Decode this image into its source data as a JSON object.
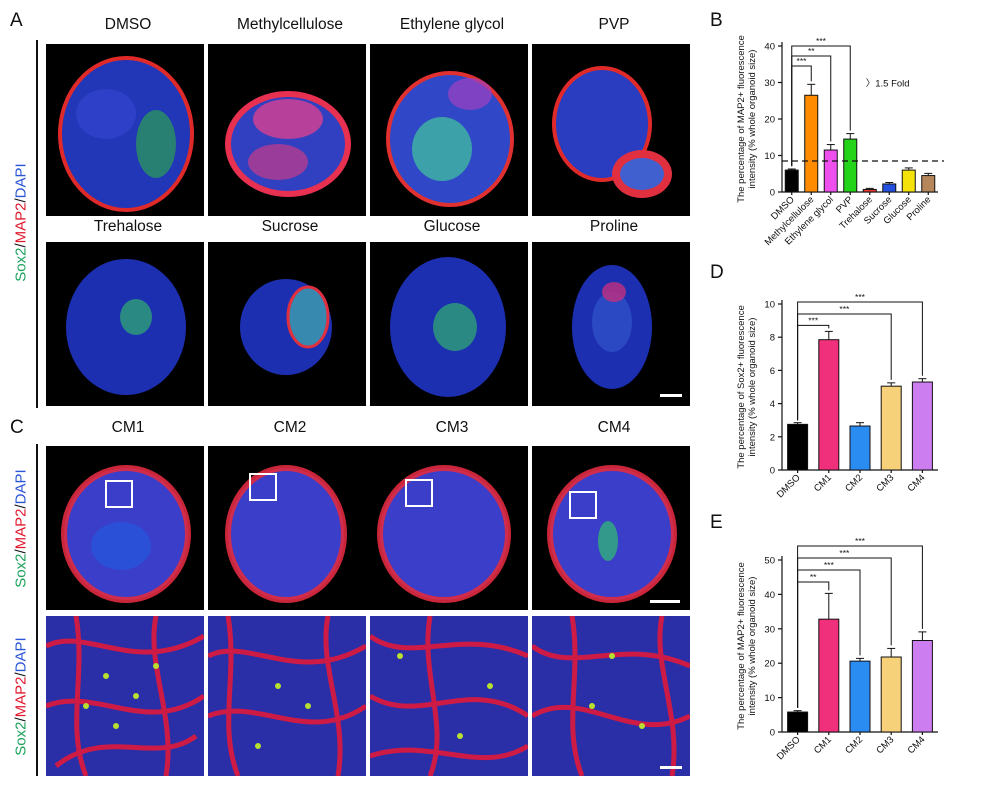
{
  "panels": {
    "A": "A",
    "B": "B",
    "C": "C",
    "D": "D",
    "E": "E"
  },
  "panel_a": {
    "row1": [
      "DMSO",
      "Methylcellulose",
      "Ethylene glycol",
      "PVP"
    ],
    "row2": [
      "Trehalose",
      "Sucrose",
      "Glucose",
      "Proline"
    ],
    "stain": {
      "sox2": "Sox2",
      "slash1": "/",
      "map2": "MAP2",
      "slash2": "/",
      "dapi": "DAPI"
    }
  },
  "panel_c": {
    "cols": [
      "CM1",
      "CM2",
      "CM3",
      "CM4"
    ],
    "stain_top": {
      "sox2": "Sox2",
      "slash1": "/",
      "map2": "MAP2",
      "slash2": "/",
      "dapi": "DAPI"
    },
    "stain_bottom": {
      "sox2": "Sox2",
      "slash1": "/",
      "map2": "MAP2",
      "slash2": "/",
      "dapi": "DAPI"
    }
  },
  "colors": {
    "black": "#000000",
    "orange": "#ff8c00",
    "magenta": "#ee50ee",
    "green": "#23d41a",
    "red": "#e8372f",
    "blue": "#2450e0",
    "yellow": "#f5e20a",
    "tan": "#b5865a",
    "pink": "#f0307a",
    "skyblue": "#2a8cf0",
    "peach": "#f7d07a",
    "lavender": "#cc7df0"
  },
  "chart_data": [
    {
      "id": "B",
      "type": "bar",
      "categories": [
        "DMSO",
        "Methylcellulose",
        "Ethylene glycol",
        "PVP",
        "Trehalose",
        "Sucrose",
        "Glucose",
        "Proline"
      ],
      "values": [
        6,
        26.5,
        11.5,
        14.5,
        0.7,
        2.2,
        6,
        4.5
      ],
      "errors": [
        0.3,
        3,
        1.5,
        1.5,
        0.3,
        0.4,
        0.6,
        0.6
      ],
      "colors": [
        "#000000",
        "#ff8c00",
        "#ee50ee",
        "#23d41a",
        "#e8372f",
        "#2450e0",
        "#f5e20a",
        "#b5865a"
      ],
      "ylabel_line1": "The percentage of MAP2+ fluorescence",
      "ylabel_line2": "intensity (% whole organoid size)",
      "ylim": [
        0,
        40
      ],
      "yticks": [
        0,
        10,
        20,
        30,
        40
      ],
      "reference_line": 8.5,
      "annotation": "1.5 Fold",
      "significance": [
        {
          "to": "Methylcellulose",
          "label": "***"
        },
        {
          "to": "Ethylene glycol",
          "label": "**"
        },
        {
          "to": "PVP",
          "label": "***"
        }
      ]
    },
    {
      "id": "D",
      "type": "bar",
      "categories": [
        "DMSO",
        "CM1",
        "CM2",
        "CM3",
        "CM4"
      ],
      "values": [
        2.75,
        7.85,
        2.65,
        5.05,
        5.3
      ],
      "errors": [
        0.1,
        0.5,
        0.2,
        0.2,
        0.2
      ],
      "colors": [
        "#000000",
        "#f0307a",
        "#2a8cf0",
        "#f7d07a",
        "#cc7df0"
      ],
      "ylabel_line1": "The percentage of Sox2+ fluorescence",
      "ylabel_line2": "intensity (% whole organoid size)",
      "ylim": [
        0,
        10
      ],
      "yticks": [
        0,
        2,
        4,
        6,
        8,
        10
      ],
      "significance": [
        {
          "to": "CM1",
          "label": "***"
        },
        {
          "to": "CM3",
          "label": "***"
        },
        {
          "to": "CM4",
          "label": "***"
        }
      ]
    },
    {
      "id": "E",
      "type": "bar",
      "categories": [
        "DMSO",
        "CM1",
        "CM2",
        "CM3",
        "CM4"
      ],
      "values": [
        5.8,
        32.8,
        20.6,
        21.8,
        26.6
      ],
      "errors": [
        0.4,
        7.5,
        0.8,
        2.5,
        2.5
      ],
      "colors": [
        "#000000",
        "#f0307a",
        "#2a8cf0",
        "#f7d07a",
        "#cc7df0"
      ],
      "ylabel_line1": "The percentage of MAP2+ fluorescence",
      "ylabel_line2": "intensity (% whole organoid size)",
      "ylim": [
        0,
        50
      ],
      "yticks": [
        0,
        10,
        20,
        30,
        40,
        50
      ],
      "significance": [
        {
          "to": "CM1",
          "label": "**"
        },
        {
          "to": "CM2",
          "label": "***"
        },
        {
          "to": "CM3",
          "label": "***"
        },
        {
          "to": "CM4",
          "label": "***"
        }
      ]
    }
  ]
}
